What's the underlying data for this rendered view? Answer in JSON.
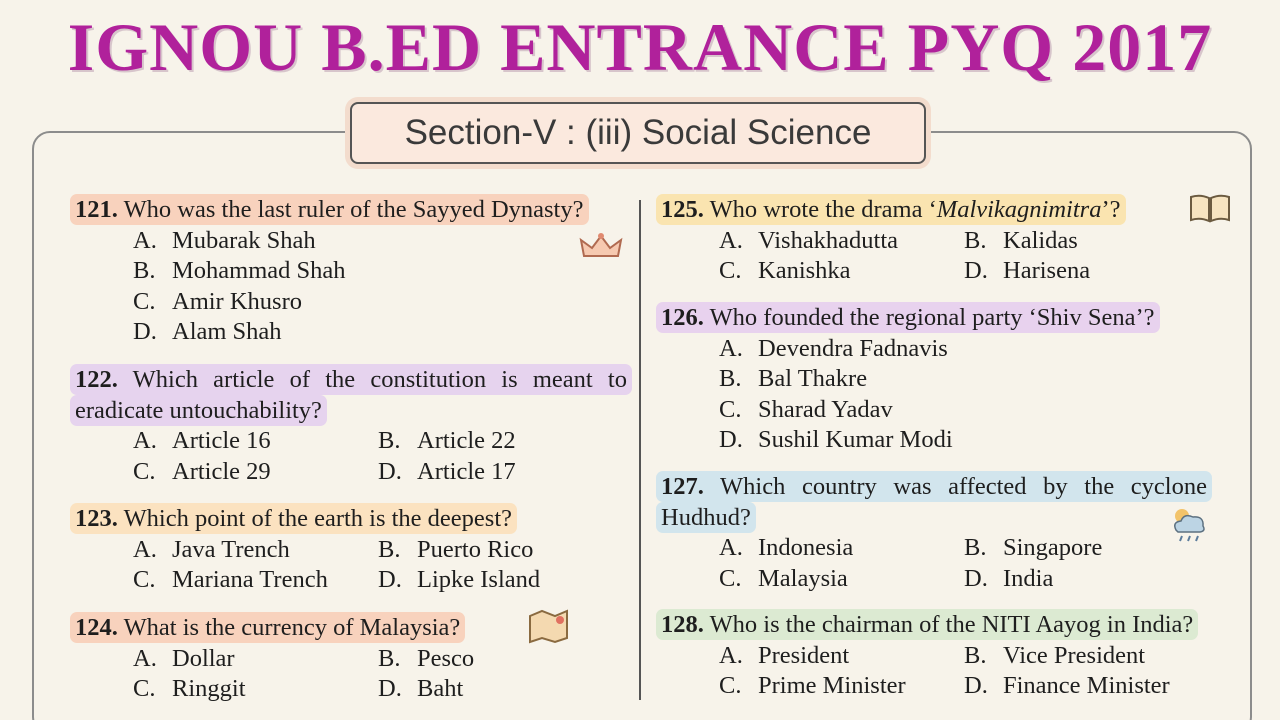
{
  "title": "IGNOU B.ED ENTRANCE PYQ 2017",
  "section": "Section-V : (iii) Social Science",
  "questions": [
    {
      "number": "121.",
      "text": [
        "Who was the last ruler of the Sayyed Dynasty?"
      ],
      "options": [
        {
          "letter": "A.",
          "text": "Mubarak Shah"
        },
        {
          "letter": "B.",
          "text": "Mohammad Shah"
        },
        {
          "letter": "C.",
          "text": "Amir Khusro"
        },
        {
          "letter": "D.",
          "text": "Alam Shah"
        }
      ]
    },
    {
      "number": "122.",
      "text": [
        "Which article of the constitution is meant to eradicate untouchability?"
      ],
      "options": [
        {
          "letter": "A.",
          "text": "Article 16"
        },
        {
          "letter": "B.",
          "text": "Article 22"
        },
        {
          "letter": "C.",
          "text": "Article 29"
        },
        {
          "letter": "D.",
          "text": "Article 17"
        }
      ]
    },
    {
      "number": "123.",
      "text": [
        "Which point of the earth is the deepest?"
      ],
      "options": [
        {
          "letter": "A.",
          "text": "Java Trench"
        },
        {
          "letter": "B.",
          "text": "Puerto Rico"
        },
        {
          "letter": "C.",
          "text": "Mariana Trench"
        },
        {
          "letter": "D.",
          "text": "Lipke Island"
        }
      ]
    },
    {
      "number": "124.",
      "text": [
        "What is the currency of Malaysia?"
      ],
      "options": [
        {
          "letter": "A.",
          "text": "Dollar"
        },
        {
          "letter": "B.",
          "text": "Pesco"
        },
        {
          "letter": "C.",
          "text": "Ringgit"
        },
        {
          "letter": "D.",
          "text": "Baht"
        }
      ]
    },
    {
      "number": "125.",
      "text": [
        "Who wrote the drama ‘",
        "Malvikagnimitra",
        "’?"
      ],
      "options": [
        {
          "letter": "A.",
          "text": "Vishakhadutta"
        },
        {
          "letter": "B.",
          "text": "Kalidas"
        },
        {
          "letter": "C.",
          "text": "Kanishka"
        },
        {
          "letter": "D.",
          "text": "Harisena"
        }
      ]
    },
    {
      "number": "126.",
      "text": [
        "Who founded the regional party ‘Shiv Sena’?"
      ],
      "options": [
        {
          "letter": "A.",
          "text": "Devendra Fadnavis"
        },
        {
          "letter": "B.",
          "text": "Bal Thakre"
        },
        {
          "letter": "C.",
          "text": "Sharad Yadav"
        },
        {
          "letter": "D.",
          "text": "Sushil Kumar Modi"
        }
      ]
    },
    {
      "number": "127.",
      "text": [
        "Which country was affected by the cyclone Hudhud?"
      ],
      "options": [
        {
          "letter": "A.",
          "text": "Indonesia"
        },
        {
          "letter": "B.",
          "text": "Singapore"
        },
        {
          "letter": "C.",
          "text": "Malaysia"
        },
        {
          "letter": "D.",
          "text": "India"
        }
      ]
    },
    {
      "number": "128.",
      "text": [
        "Who is the chairman of the NITI Aayog in India?"
      ],
      "options": [
        {
          "letter": "A.",
          "text": "President"
        },
        {
          "letter": "B.",
          "text": "Vice President"
        },
        {
          "letter": "C.",
          "text": "Prime Minister"
        },
        {
          "letter": "D.",
          "text": "Finance Minister"
        }
      ]
    }
  ]
}
